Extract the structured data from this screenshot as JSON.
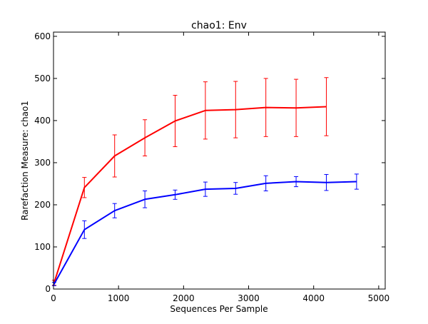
{
  "chart_data": {
    "type": "line",
    "title": "chao1: Env",
    "xlabel": "Sequences Per Sample",
    "ylabel": "Rarefaction Measure: chao1",
    "xlim": [
      0,
      5100
    ],
    "ylim": [
      0,
      610
    ],
    "xticks": [
      0,
      1000,
      2000,
      3000,
      4000,
      5000
    ],
    "yticks": [
      0,
      100,
      200,
      300,
      400,
      500,
      600
    ],
    "xtick_labels": [
      "0",
      "1000",
      "2000",
      "3000",
      "4000",
      "5000"
    ],
    "ytick_labels": [
      "0",
      "100",
      "200",
      "300",
      "400",
      "500",
      "600"
    ],
    "grid": false,
    "series": [
      {
        "color": "#ff0000",
        "x": [
          10,
          475,
          940,
          1405,
          1870,
          2335,
          2800,
          3265,
          3730,
          4195
        ],
        "y": [
          15,
          241,
          316,
          359,
          399,
          424,
          426,
          431,
          430,
          433
        ],
        "err": [
          6,
          24,
          50,
          43,
          61,
          68,
          67,
          69,
          68,
          69
        ]
      },
      {
        "color": "#0000ff",
        "x": [
          10,
          475,
          940,
          1405,
          1870,
          2335,
          2800,
          3265,
          3730,
          4195,
          4660
        ],
        "y": [
          12,
          141,
          186,
          213,
          224,
          237,
          239,
          251,
          255,
          253,
          255
        ],
        "err": [
          4,
          21,
          17,
          20,
          11,
          17,
          14,
          18,
          12,
          19,
          18
        ]
      }
    ]
  }
}
